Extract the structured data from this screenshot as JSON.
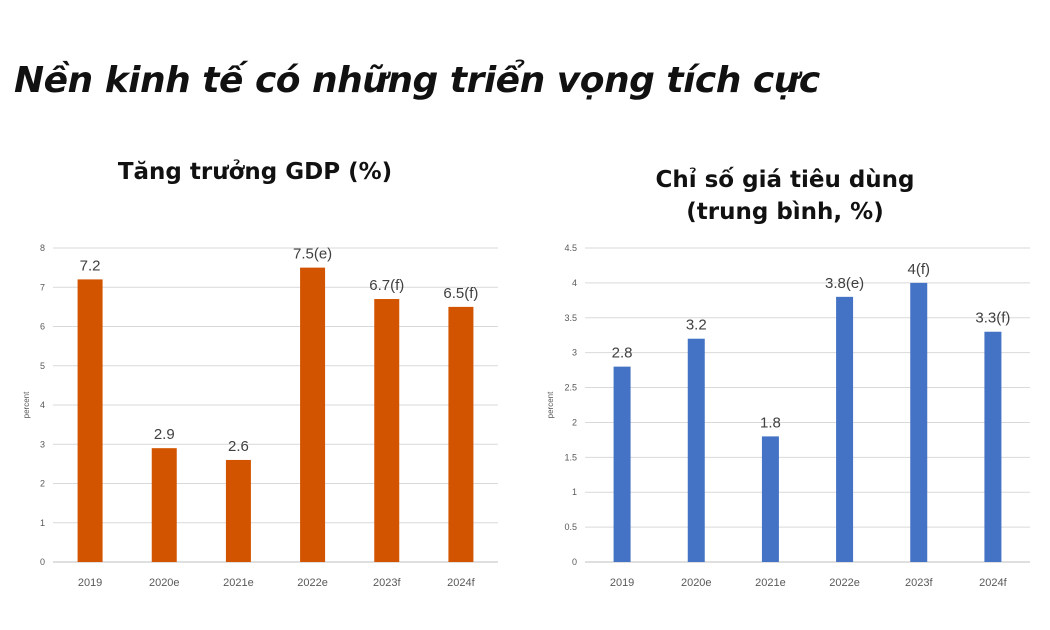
{
  "page": {
    "title": "Nền kinh tế có những triển vọng tích cực"
  },
  "chart_data": [
    {
      "type": "bar",
      "title": "Tăng trưởng GDP (%)",
      "xlabel": "",
      "ylabel": "percent",
      "ylim": [
        0,
        8
      ],
      "yticks": [
        "0",
        "1",
        "2",
        "3",
        "4",
        "5",
        "6",
        "7",
        "8"
      ],
      "grid": true,
      "color": "#d35400",
      "categories": [
        "2019",
        "2020e",
        "2021e",
        "2022e",
        "2023f",
        "2024f"
      ],
      "values": [
        7.2,
        2.9,
        2.6,
        7.5,
        6.7,
        6.5
      ],
      "data_labels": [
        "7.2",
        "2.9",
        "2.6",
        "7.5(e)",
        "6.7(f)",
        "6.5(f)"
      ]
    },
    {
      "type": "bar",
      "title": "Chỉ số giá tiêu dùng (trung bình, %)",
      "title_lines": [
        "Chỉ số giá tiêu dùng",
        "(trung bình, %)"
      ],
      "xlabel": "",
      "ylabel": "percent",
      "ylim": [
        0,
        4.5
      ],
      "yticks": [
        "0",
        "0.5",
        "1",
        "1.5",
        "2",
        "2.5",
        "3",
        "3.5",
        "4",
        "4.5"
      ],
      "grid": true,
      "color": "#4472c4",
      "categories": [
        "2019",
        "2020e",
        "2021e",
        "2022e",
        "2023f",
        "2024f"
      ],
      "values": [
        2.8,
        3.2,
        1.8,
        3.8,
        4.0,
        3.3
      ],
      "data_labels": [
        "2.8",
        "3.2",
        "1.8",
        "3.8(e)",
        "4(f)",
        "3.3(f)"
      ]
    }
  ]
}
